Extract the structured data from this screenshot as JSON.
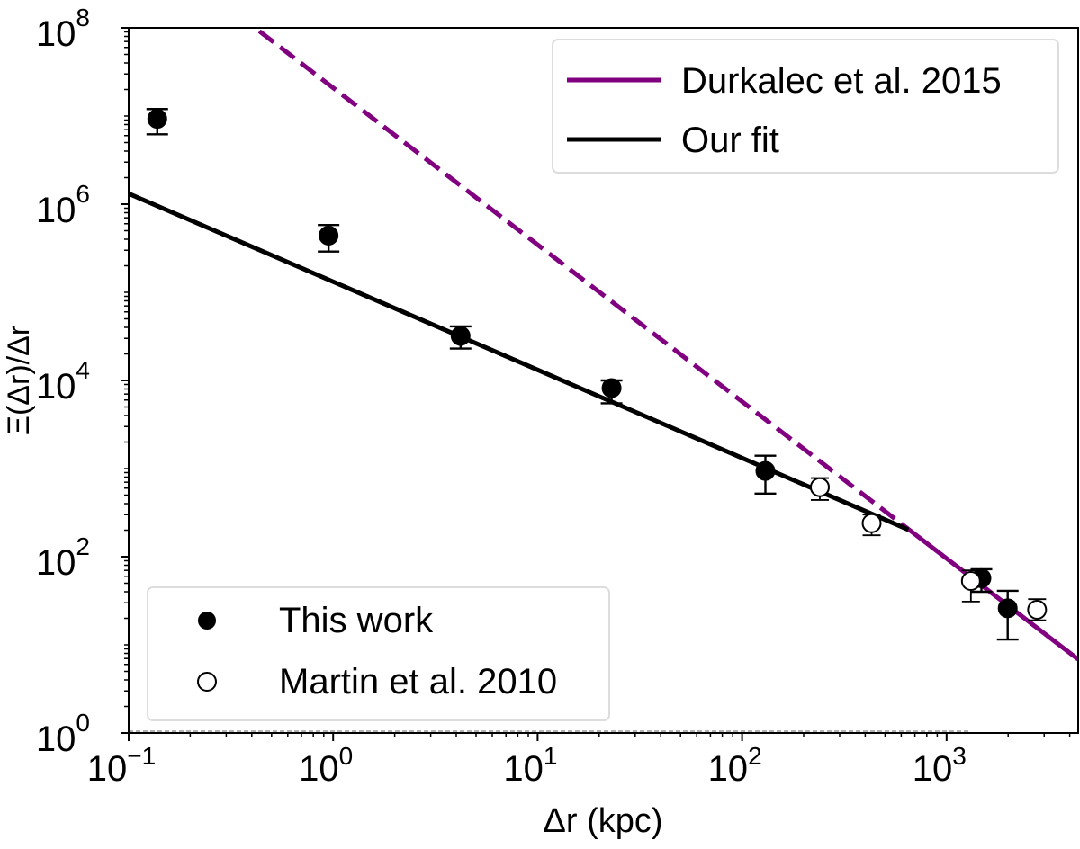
{
  "chart_data": {
    "type": "scatter",
    "xlabel": "Δr (kpc)",
    "ylabel": "Ξ(Δr)/Δr",
    "xscale": "log",
    "yscale": "log",
    "xlim": [
      0.1,
      4400
    ],
    "ylim": [
      1,
      100000000
    ],
    "x_ticks": [
      {
        "base": "10",
        "exp": "−1",
        "v": 0.1
      },
      {
        "base": "10",
        "exp": "0",
        "v": 1
      },
      {
        "base": "10",
        "exp": "1",
        "v": 10
      },
      {
        "base": "10",
        "exp": "2",
        "v": 100
      },
      {
        "base": "10",
        "exp": "3",
        "v": 1000
      }
    ],
    "y_ticks": [
      {
        "base": "10",
        "exp": "0",
        "v": 1
      },
      {
        "base": "10",
        "exp": "2",
        "v": 100
      },
      {
        "base": "10",
        "exp": "4",
        "v": 10000
      },
      {
        "base": "10",
        "exp": "6",
        "v": 1000000
      },
      {
        "base": "10",
        "exp": "8",
        "v": 100000000
      }
    ],
    "grid": false,
    "legends": [
      {
        "placement": "upper right",
        "entries": [
          "Durkalec et al. 2015",
          "Our fit"
        ]
      },
      {
        "placement": "lower left",
        "entries": [
          "This work",
          "Martin et al. 2010"
        ]
      }
    ],
    "series": [
      {
        "name": "This work",
        "kind": "points",
        "marker": "filled-circle",
        "color": "#000000",
        "points": [
          {
            "x": 0.138,
            "y": 9300000,
            "ylo": 6200000,
            "yhi": 12000000
          },
          {
            "x": 0.95,
            "y": 440000,
            "ylo": 290000,
            "yhi": 580000
          },
          {
            "x": 4.2,
            "y": 32000,
            "ylo": 23000,
            "yhi": 41000
          },
          {
            "x": 23,
            "y": 8200,
            "ylo": 5500,
            "yhi": 10000
          },
          {
            "x": 130,
            "y": 940,
            "ylo": 520,
            "yhi": 1400
          },
          {
            "x": 1480,
            "y": 57,
            "ylo": 40,
            "yhi": 72
          },
          {
            "x": 1990,
            "y": 26,
            "ylo": 11.5,
            "yhi": 41
          }
        ]
      },
      {
        "name": "Martin et al. 2010",
        "kind": "points",
        "marker": "open-circle",
        "color": "#000000",
        "points": [
          {
            "x": 240,
            "y": 615,
            "ylo": 440,
            "yhi": 780
          },
          {
            "x": 430,
            "y": 240,
            "ylo": 175,
            "yhi": 300
          },
          {
            "x": 1315,
            "y": 53,
            "ylo": 31,
            "yhi": 70
          },
          {
            "x": 2770,
            "y": 25,
            "ylo": 19,
            "yhi": 33
          }
        ]
      },
      {
        "name": "Durkalec et al. 2015",
        "kind": "line",
        "color": "#800080",
        "power_law": {
          "log10_amplitude": 7.32,
          "slope": -1.78
        },
        "dashed_range": [
          0.41,
          650
        ],
        "solid_range": [
          650,
          4400
        ]
      },
      {
        "name": "Our fit",
        "kind": "line",
        "color": "#000000",
        "power_law": {
          "log10_amplitude": 5.12,
          "slope": -1.0
        },
        "solid_range": [
          0.1,
          650
        ]
      }
    ]
  }
}
